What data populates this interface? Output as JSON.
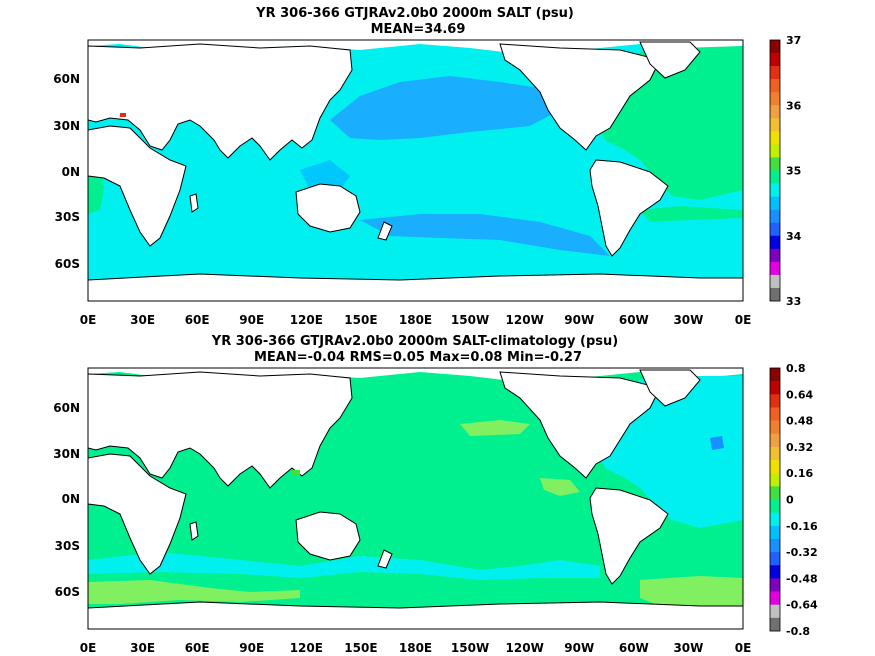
{
  "panels": [
    {
      "title_line1": "YR 306-366 GTJRAv2.0b0 2000m SALT (psu)",
      "title_line2": "MEAN=34.69",
      "lat_labels": [
        "60N",
        "30N",
        "0N",
        "30S",
        "60S"
      ],
      "lon_labels": [
        "0E",
        "30E",
        "60E",
        "90E",
        "120E",
        "150E",
        "180E",
        "150W",
        "120W",
        "90W",
        "60W",
        "30W",
        "0E"
      ],
      "colorbar": {
        "labels": [
          "37",
          "36",
          "35",
          "34",
          "33"
        ],
        "colors": [
          "#8b0000",
          "#c00000",
          "#e03010",
          "#f06020",
          "#f08030",
          "#f0a040",
          "#f0c030",
          "#f0e000",
          "#c0f000",
          "#40e040",
          "#00f090",
          "#00f0f0",
          "#00c0ff",
          "#1890ff",
          "#2060ff",
          "#0000e0",
          "#8000c0",
          "#e000e0",
          "#c0c0c0",
          "#707070"
        ]
      },
      "field_colors": {
        "ocean": "#00f0f0",
        "warm": "#00f090",
        "deep": "#1aaeff",
        "mid": "#00c8ff",
        "land": "#ffffff",
        "accent": "#e03010"
      }
    },
    {
      "title_line1": "YR 306-366 GTJRAv2.0b0 2000m SALT-climatology (psu)",
      "title_line2": "MEAN=-0.04   RMS=0.05   Max=0.08   Min=-0.27",
      "lat_labels": [
        "60N",
        "30N",
        "0N",
        "30S",
        "60S"
      ],
      "lon_labels": [
        "0E",
        "30E",
        "60E",
        "90E",
        "120E",
        "150E",
        "180E",
        "150W",
        "120W",
        "90W",
        "60W",
        "30W",
        "0E"
      ],
      "colorbar": {
        "labels": [
          "0.8",
          "0.64",
          "0.48",
          "0.32",
          "0.16",
          "0",
          "-0.16",
          "-0.32",
          "-0.48",
          "-0.64",
          "-0.8"
        ],
        "colors": [
          "#8b0000",
          "#c00000",
          "#e03010",
          "#f06020",
          "#f08030",
          "#f0a040",
          "#f0c030",
          "#f0e000",
          "#c0f000",
          "#40e040",
          "#00f090",
          "#00f0f0",
          "#00c0ff",
          "#1890ff",
          "#2060ff",
          "#0000e0",
          "#8000c0",
          "#e000e0",
          "#c0c0c0",
          "#707070"
        ]
      },
      "field_colors": {
        "ocean": "#00f090",
        "warm": "#80f060",
        "deep": "#1890ff",
        "mid": "#00f0f0",
        "land": "#ffffff",
        "accent": "#40e040"
      }
    }
  ]
}
